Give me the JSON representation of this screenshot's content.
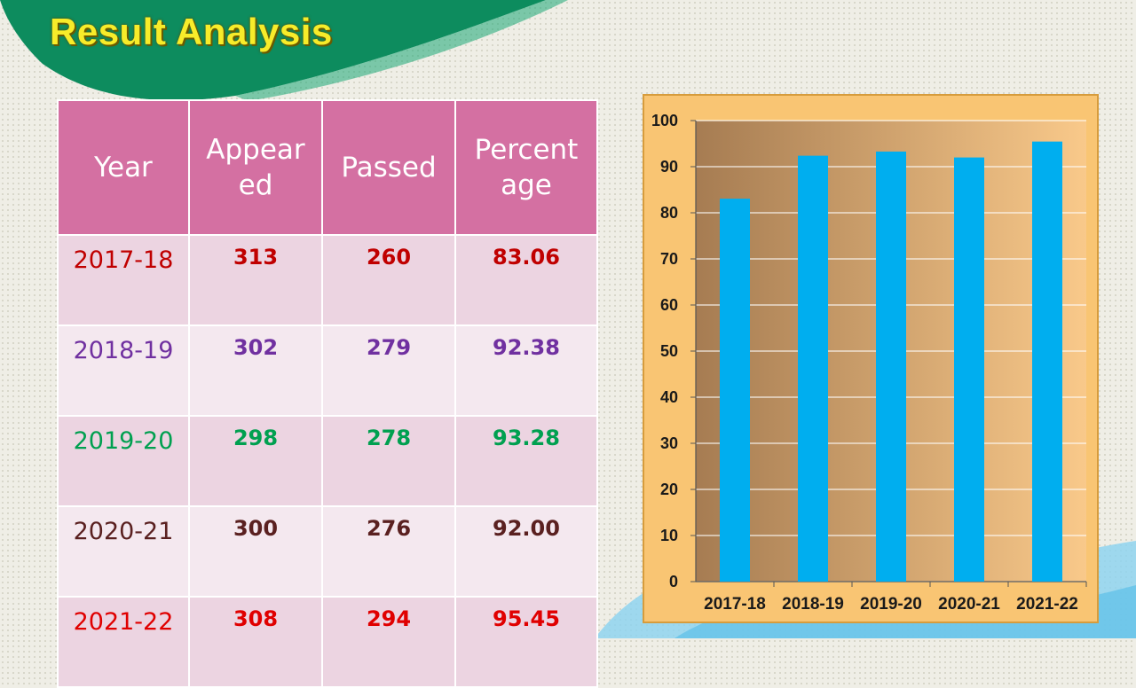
{
  "page": {
    "title": "Result Analysis"
  },
  "table": {
    "headers": [
      [
        "Year"
      ],
      [
        "Appear",
        "ed"
      ],
      [
        "Passed"
      ],
      [
        "Percent",
        "age"
      ]
    ],
    "rows": [
      {
        "year": "2017-18",
        "appeared": "313",
        "passed": "260",
        "percentage": "83.06",
        "color": "#c00000"
      },
      {
        "year": "2018-19",
        "appeared": "302",
        "passed": "279",
        "percentage": "92.38",
        "color": "#7030a0"
      },
      {
        "year": "2019-20",
        "appeared": "298",
        "passed": "278",
        "percentage": "93.28",
        "color": "#00a050"
      },
      {
        "year": "2020-21",
        "appeared": "300",
        "passed": "276",
        "percentage": "92.00",
        "color": "#5a2020"
      },
      {
        "year": "2021-22",
        "appeared": "308",
        "passed": "294",
        "percentage": "95.45",
        "color": "#e00000"
      }
    ]
  },
  "chart_data": {
    "type": "bar",
    "categories": [
      "2017-18",
      "2018-19",
      "2019-20",
      "2020-21",
      "2021-22"
    ],
    "values": [
      83.06,
      92.38,
      93.28,
      92.0,
      95.45
    ],
    "ylim": [
      0,
      100
    ],
    "yticks": [
      0,
      10,
      20,
      30,
      40,
      50,
      60,
      70,
      80,
      90,
      100
    ],
    "grid": true,
    "bar_color": "#00aeef",
    "title": "",
    "xlabel": "",
    "ylabel": ""
  }
}
